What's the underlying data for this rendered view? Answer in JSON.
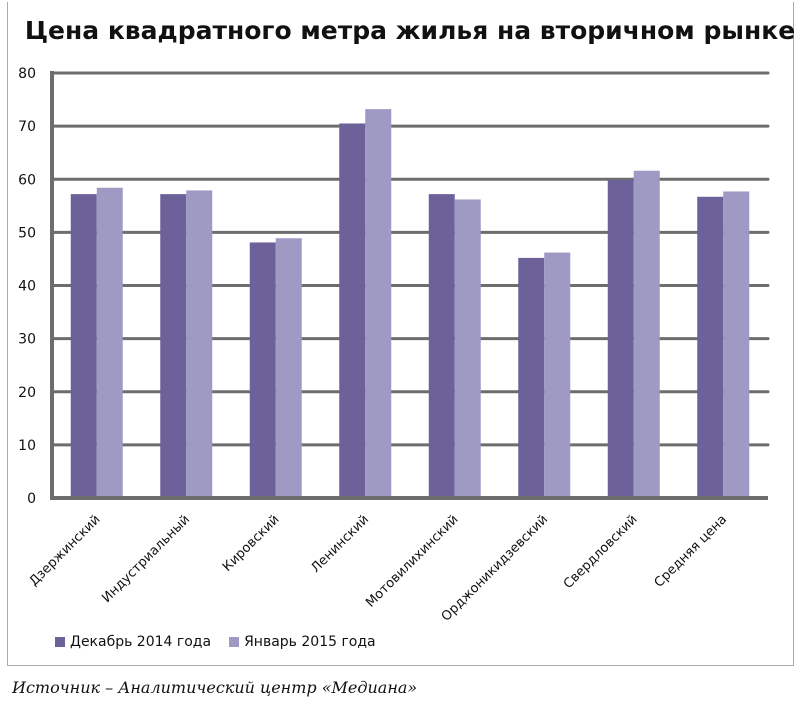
{
  "chart_data": {
    "type": "bar",
    "title": "Цена квадратного метра жилья на вторичном рынке",
    "categories": [
      "Дзержинский",
      "Индустриальный",
      "Кировский",
      "Ленинский",
      "Мотовилихинский",
      "Орджоникидзевский",
      "Свердловский",
      "Средняя цена"
    ],
    "series": [
      {
        "name": "Декабрь 2014 года",
        "color": "#6c6199",
        "values": [
          57.2,
          57.2,
          48.1,
          70.5,
          57.2,
          45.2,
          59.9,
          56.7
        ]
      },
      {
        "name": "Январь 2015 года",
        "color": "#9e9ac4",
        "values": [
          58.4,
          57.9,
          48.9,
          73.2,
          56.2,
          46.2,
          61.6,
          57.7
        ]
      }
    ],
    "ylim": [
      0,
      80
    ],
    "yticks": [
      "0",
      "10",
      "20",
      "30",
      "40",
      "50",
      "60",
      "70",
      "80"
    ],
    "grid": true,
    "legend": "bottom-left"
  },
  "source": "Источник – Аналитический центр «Медиана»"
}
